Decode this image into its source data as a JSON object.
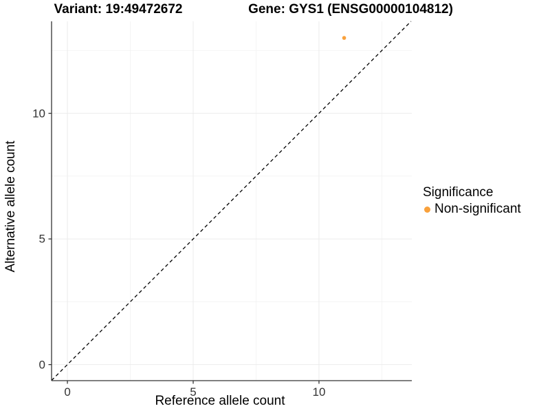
{
  "titles": {
    "left": "Variant: 19:49472672",
    "right": "Gene: GYS1 (ENSG00000104812)"
  },
  "chart_data": {
    "type": "scatter",
    "title_left": "Variant: 19:49472672",
    "title_right": "Gene: GYS1 (ENSG00000104812)",
    "xlabel": "Reference allele count",
    "ylabel": "Alternative allele count",
    "xlim": [
      -0.63,
      13.69
    ],
    "ylim": [
      -0.64,
      13.66
    ],
    "x_ticks": [
      0,
      5,
      10
    ],
    "y_ticks": [
      0,
      5,
      10
    ],
    "x_minor_ticks": [
      2.5,
      7.5,
      12.5
    ],
    "y_minor_ticks": [
      2.5,
      7.5,
      12.5
    ],
    "grid": "on",
    "series": [
      {
        "name": "Non-significant",
        "color": "#F9A13C",
        "points": [
          {
            "x": 11,
            "y": 13
          }
        ]
      }
    ],
    "reference_line": {
      "type": "identity",
      "slope": 1,
      "intercept": 0,
      "style": "dashed",
      "color": "#000000"
    },
    "legend": {
      "title": "Significance",
      "position": "right",
      "items": [
        {
          "label": "Non-significant",
          "color": "#F9A13C"
        }
      ]
    }
  },
  "colors": {
    "point_orange": "#F9A13C",
    "grid_major": "#EBEBEB",
    "grid_minor": "#F3F3F3",
    "axis": "#333333",
    "background": "#FFFFFF"
  }
}
